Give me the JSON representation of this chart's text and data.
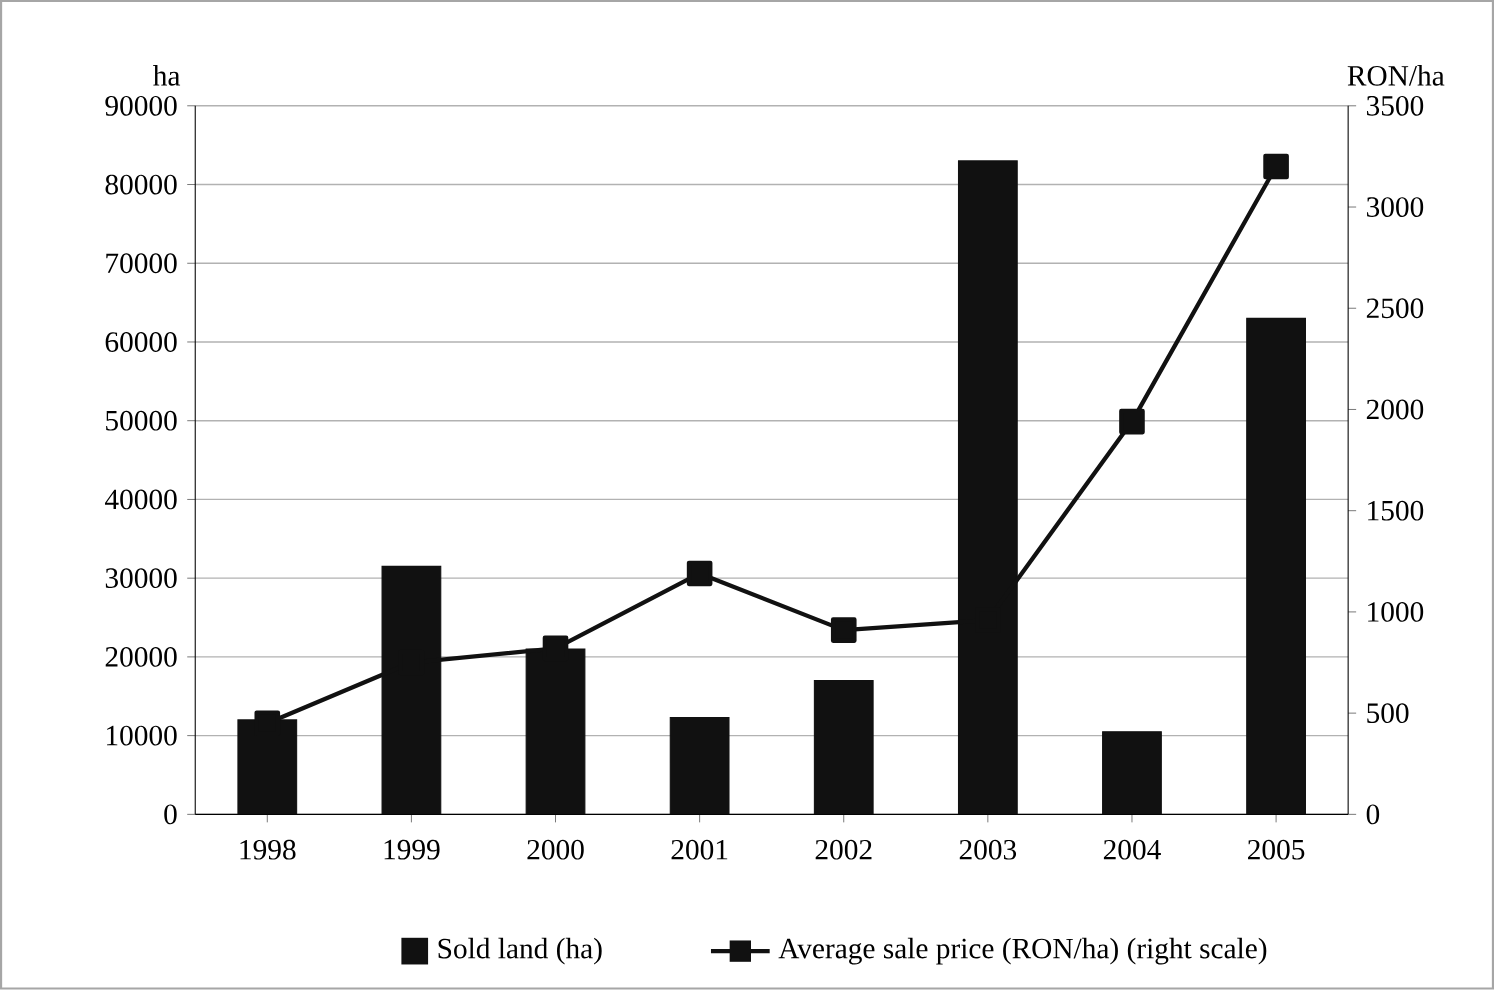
{
  "chart_data": {
    "type": "bar",
    "categories": [
      "1998",
      "1999",
      "2000",
      "2001",
      "2002",
      "2003",
      "2004",
      "2005"
    ],
    "series": [
      {
        "name": "Sold land (ha)",
        "color": "#111111",
        "values": [
          12000,
          31500,
          21000,
          12300,
          17000,
          83000,
          10500,
          63000
        ]
      },
      {
        "name": "Average sale price (RON/ha) (right scale)",
        "type": "line",
        "axis": "y2",
        "marker": "square",
        "color": "#111111",
        "values": [
          450,
          750,
          820,
          1190,
          910,
          960,
          1940,
          3200
        ]
      }
    ],
    "ylabel": "ha",
    "y2label": "RON/ha",
    "ylim": [
      0,
      90000
    ],
    "yticks": [
      0,
      10000,
      20000,
      30000,
      40000,
      50000,
      60000,
      70000,
      80000,
      90000
    ],
    "y2lim": [
      0,
      3500
    ],
    "y2ticks": [
      0,
      500,
      1000,
      1500,
      2000,
      2500,
      3000,
      3500
    ],
    "grid": "y",
    "legend": "bottom"
  }
}
